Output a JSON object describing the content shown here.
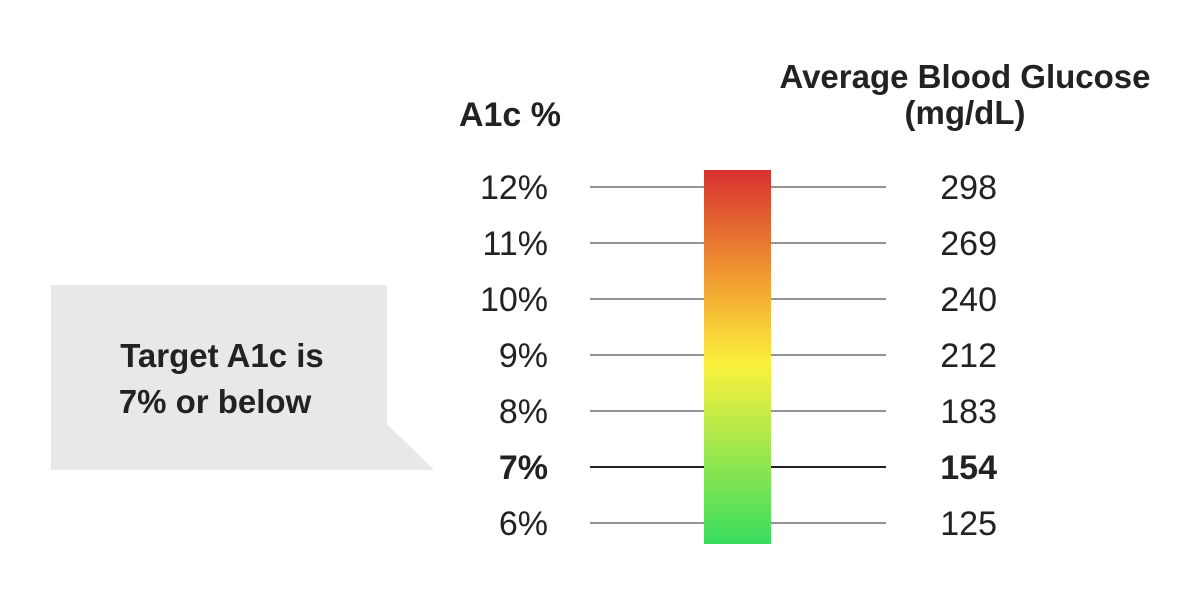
{
  "chart_data": {
    "type": "table",
    "left_header": "A1c %",
    "right_header_line1": "Average Blood Glucose",
    "right_header_line2": "(mg/dL)",
    "rows": [
      {
        "a1c": "12%",
        "glucose": "298"
      },
      {
        "a1c": "11%",
        "glucose": "269"
      },
      {
        "a1c": "10%",
        "glucose": "240"
      },
      {
        "a1c": "9%",
        "glucose": "212"
      },
      {
        "a1c": "8%",
        "glucose": "183"
      },
      {
        "a1c": "7%",
        "glucose": "154",
        "highlight": true
      },
      {
        "a1c": "6%",
        "glucose": "125"
      }
    ],
    "gradient_colors": [
      "#d8302f",
      "#f3ab32",
      "#fbf13d",
      "#39dd5e"
    ],
    "callout": {
      "line1": "Target A1c is",
      "line2": "7% or below",
      "color": "#e8e8e8"
    }
  }
}
